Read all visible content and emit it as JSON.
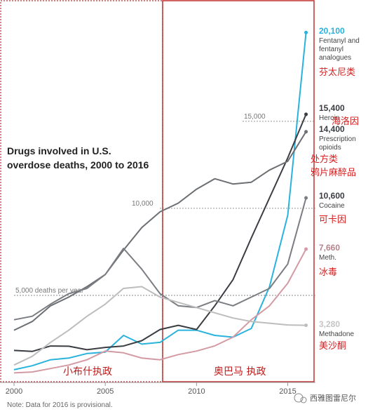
{
  "chart_data": {
    "type": "line",
    "title": "Drugs involved in U.S. overdose deaths, 2000 to 2016",
    "note": "Note: Data for 2016 is provisional.",
    "x": [
      2000,
      2001,
      2002,
      2003,
      2004,
      2005,
      2006,
      2007,
      2008,
      2009,
      2010,
      2011,
      2012,
      2013,
      2014,
      2015,
      2016
    ],
    "x_ticks": [
      "2000",
      "2005",
      "2010",
      "2015"
    ],
    "xlim": [
      2000,
      2016.4
    ],
    "ylim": [
      0,
      21000
    ],
    "grid": false,
    "guides": [
      {
        "value": 5000,
        "label": "5,000 deaths per year"
      },
      {
        "value": 10000,
        "label": "10,000"
      },
      {
        "value": 15000,
        "label": "15,000"
      }
    ],
    "series": [
      {
        "name": "Fentanyl and fentanyl analogues",
        "cn": "芬太尼类",
        "end_label": "20,100",
        "color": "#29b3dc",
        "values": [
          730,
          960,
          1300,
          1400,
          1660,
          1740,
          2700,
          2200,
          2300,
          3000,
          3000,
          2700,
          2600,
          3100,
          5500,
          9600,
          20100
        ]
      },
      {
        "name": "Heroin",
        "cn": "海洛因",
        "end_label": "15,400",
        "color": "#3a3d42",
        "values": [
          1840,
          1780,
          2090,
          2080,
          1880,
          2010,
          2090,
          2400,
          3040,
          3280,
          3040,
          4400,
          5900,
          8300,
          10600,
          12900,
          15400
        ]
      },
      {
        "name": "Prescription opioids",
        "cn": "处方类鸦片麻醉品",
        "end_label": "14,400",
        "color": "#6c6f73",
        "values": [
          3000,
          3500,
          4400,
          4900,
          5500,
          6200,
          7600,
          8900,
          9800,
          10300,
          11100,
          11700,
          11400,
          11500,
          12200,
          12700,
          14400
        ]
      },
      {
        "name": "Cocaine",
        "cn": "可卡因",
        "end_label": "10,600",
        "color": "#7a7d82",
        "values": [
          3600,
          3800,
          4500,
          5100,
          5400,
          6200,
          7700,
          6500,
          5100,
          4400,
          4300,
          4700,
          4400,
          4900,
          5400,
          6800,
          10600
        ]
      },
      {
        "name": "Meth.",
        "cn": "冰毒",
        "end_label": "7,660",
        "color": "#d49aa4",
        "values": [
          550,
          600,
          800,
          1000,
          1300,
          1800,
          1700,
          1400,
          1300,
          1600,
          1800,
          2100,
          2600,
          3600,
          4400,
          5700,
          7660
        ]
      },
      {
        "name": "Methadone",
        "cn": "美沙酮",
        "end_label": "3,280",
        "color": "#bdbdbd",
        "values": [
          1000,
          1500,
          2300,
          3000,
          3800,
          4500,
          5400,
          5500,
          4900,
          4600,
          4300,
          4000,
          3700,
          3500,
          3400,
          3300,
          3280
        ]
      }
    ]
  },
  "annotations": {
    "bush_label": "小布什执政",
    "obama_label": "奥巴马 执政",
    "watermark": "西雅图雷尼尔"
  }
}
